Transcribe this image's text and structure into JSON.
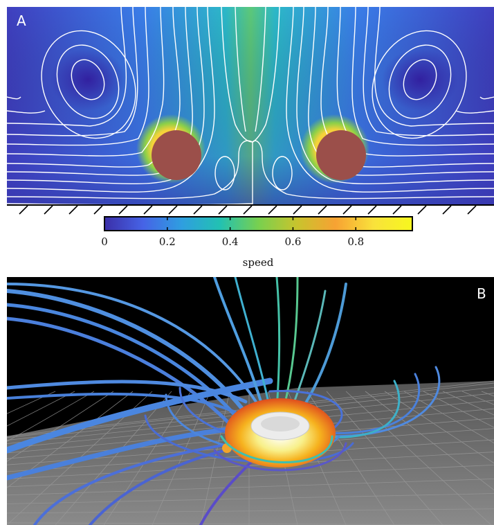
{
  "panels": {
    "a": {
      "label": "A"
    },
    "b": {
      "label": "B"
    }
  },
  "colorbar": {
    "label": "speed",
    "ticks": [
      "0",
      "0.2",
      "0.4",
      "0.6",
      "0.8"
    ],
    "tick_values": [
      0,
      0.2,
      0.4,
      0.6,
      0.8
    ],
    "range": [
      0,
      0.98
    ],
    "colormap": [
      "#3b2fa8",
      "#4663e6",
      "#2f9ee0",
      "#22c1b2",
      "#78d04f",
      "#c8c42d",
      "#f7a233",
      "#f9e23b",
      "#f7f71e"
    ]
  },
  "colors": {
    "cylinder": "#9b4f4a",
    "streamline": "#ffffff",
    "background_b": "#000000",
    "floor": "#808080"
  }
}
